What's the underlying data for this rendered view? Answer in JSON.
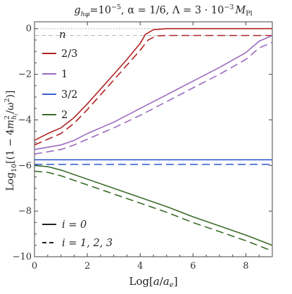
{
  "chart_data": {
    "type": "line",
    "title": "g_hφ=10⁻⁵, α=1/6, Λ=3·10⁻³ M_Pl",
    "title_parts": {
      "g": "g",
      "g_sub": "hφ",
      "eq1": "=10",
      "exp": "−5",
      "alpha": ", α = 1/6, Λ = 3 · 10",
      "exp2": "−3",
      "M": "M",
      "M_sub": "Pl"
    },
    "xlabel": "Log[a/a_e]",
    "xlabel_parts": {
      "pre": "Log[",
      "a1": "a",
      "slash": "/",
      "a2": "a",
      "sub": "e",
      "post": "]"
    },
    "ylabel": "Log₁₀[√(1 − 4m²_{h_i}/ω²)]",
    "ylabel_parts": {
      "pre": "Log",
      "sub10": "10",
      "open": "[(",
      "one": "1 − 4",
      "m": "m",
      "sup2": "2",
      "hsub": "h",
      "isub": "i",
      "slash": "/ω",
      "sup2b": "2",
      "close": ")]"
    },
    "xlim": [
      0,
      9
    ],
    "ylim": [
      -10,
      0.3
    ],
    "x_ticks": [
      0,
      2,
      4,
      6,
      8
    ],
    "x_tick_labels": [
      "0",
      "2",
      "4",
      "6",
      "8"
    ],
    "y_ticks": [
      0,
      -2,
      -4,
      -6,
      -8,
      -10
    ],
    "y_tick_labels": [
      "0",
      "−2",
      "−4",
      "−6",
      "−8",
      "−10"
    ],
    "reference_lines": [
      0,
      -0.3
    ],
    "legend_n": {
      "title": "n",
      "placement": "top-left",
      "entries": [
        {
          "label": "2/3",
          "color": "#b22222"
        },
        {
          "label": "1",
          "color": "#9b6bbf"
        },
        {
          "label": "3/2",
          "color": "#3b5fcf"
        },
        {
          "label": "2",
          "color": "#3c6b2a"
        }
      ]
    },
    "legend_i": {
      "placement": "bottom-left",
      "entries": [
        {
          "label": "i = 0",
          "style": "solid"
        },
        {
          "label": "i = 1, 2, 3",
          "style": "dashed"
        }
      ]
    },
    "series": [
      {
        "n": "2/3",
        "i": "i = 0",
        "color": "#b22222",
        "style": "solid",
        "x": [
          0,
          0.5,
          1,
          1.5,
          2,
          2.5,
          3,
          3.5,
          4,
          4.2,
          4.5,
          5,
          6,
          7,
          8,
          9
        ],
        "y": [
          -4.9,
          -4.6,
          -4.35,
          -3.9,
          -3.3,
          -2.65,
          -2.0,
          -1.35,
          -0.65,
          -0.25,
          -0.05,
          0,
          0,
          0,
          0,
          0
        ]
      },
      {
        "n": "2/3",
        "i": "i = 1, 2, 3",
        "color": "#b22222",
        "style": "dashed",
        "x": [
          0,
          0.5,
          1,
          1.5,
          2,
          2.5,
          3,
          3.5,
          4,
          4.3,
          4.6,
          5,
          6,
          7,
          8,
          9
        ],
        "y": [
          -5.1,
          -4.85,
          -4.6,
          -4.15,
          -3.55,
          -2.9,
          -2.25,
          -1.6,
          -0.95,
          -0.5,
          -0.32,
          -0.3,
          -0.3,
          -0.3,
          -0.3,
          -0.3
        ]
      },
      {
        "n": "1",
        "i": "i = 0",
        "color": "#9b6bbf",
        "style": "solid",
        "x": [
          0,
          0.5,
          1,
          1.5,
          2,
          3,
          4,
          5,
          6,
          7,
          8,
          8.5,
          9
        ],
        "y": [
          -5.3,
          -5.2,
          -5.1,
          -4.9,
          -4.6,
          -4.1,
          -3.5,
          -2.9,
          -2.3,
          -1.7,
          -1.05,
          -0.55,
          -0.3
        ]
      },
      {
        "n": "1",
        "i": "i = 1, 2, 3",
        "color": "#9b6bbf",
        "style": "dashed",
        "x": [
          0,
          0.5,
          1,
          1.5,
          2,
          3,
          4,
          5,
          6,
          7,
          8,
          8.5,
          9
        ],
        "y": [
          -5.5,
          -5.4,
          -5.3,
          -5.1,
          -4.85,
          -4.35,
          -3.8,
          -3.2,
          -2.6,
          -2.0,
          -1.35,
          -0.85,
          -0.6
        ]
      },
      {
        "n": "3/2",
        "i": "i = 0",
        "color": "#3b5fcf",
        "style": "solid",
        "x": [
          0,
          9
        ],
        "y": [
          -5.75,
          -5.75
        ]
      },
      {
        "n": "3/2",
        "i": "i = 1, 2, 3",
        "color": "#3b5fcf",
        "style": "dashed",
        "x": [
          0,
          9
        ],
        "y": [
          -5.95,
          -5.95
        ]
      },
      {
        "n": "2",
        "i": "i = 0",
        "color": "#3c6b2a",
        "style": "solid",
        "x": [
          0,
          0.5,
          1,
          2,
          3,
          4,
          5,
          6,
          7,
          8,
          9
        ],
        "y": [
          -6.0,
          -6.05,
          -6.2,
          -6.6,
          -7.0,
          -7.4,
          -7.8,
          -8.25,
          -8.65,
          -9.05,
          -9.5
        ]
      },
      {
        "n": "2",
        "i": "i = 1, 2, 3",
        "color": "#3c6b2a",
        "style": "dashed",
        "x": [
          0,
          0.5,
          1,
          2,
          3,
          4,
          5,
          6,
          7,
          8,
          9
        ],
        "y": [
          -6.25,
          -6.3,
          -6.45,
          -6.85,
          -7.25,
          -7.65,
          -8.05,
          -8.5,
          -8.9,
          -9.3,
          -9.75
        ]
      }
    ]
  }
}
